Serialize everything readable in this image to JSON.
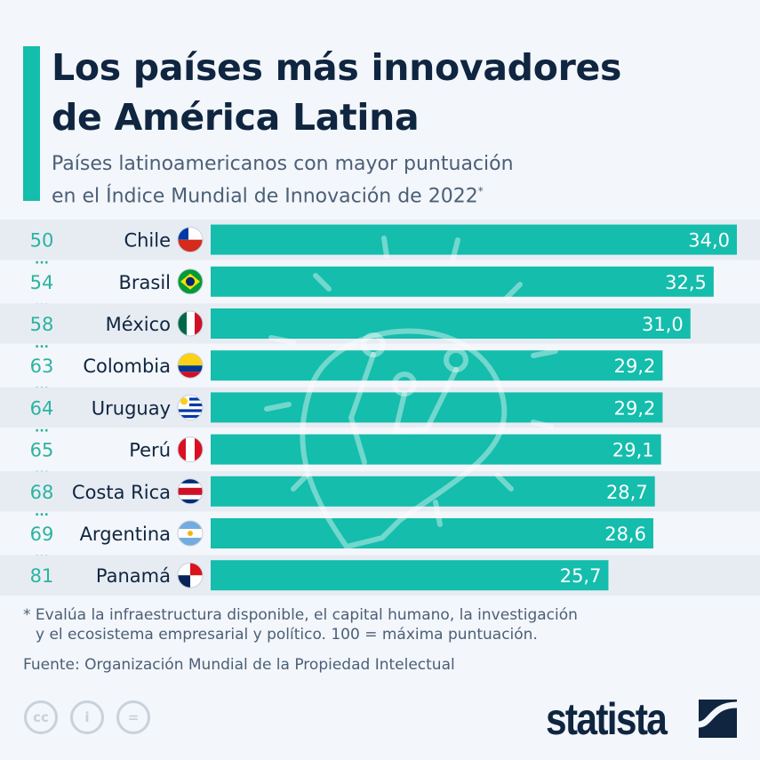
{
  "header": {
    "title_line1": "Los países más innovadores",
    "title_line2": "de América Latina",
    "subtitle_line1": "Países latinoamericanos con mayor puntuación",
    "subtitle_line2": "en el Índice Mundial de Innovación de 2022",
    "subtitle_mark": "*"
  },
  "chart_data": {
    "type": "bar",
    "orientation": "horizontal",
    "categories": [
      "Chile",
      "Brasil",
      "México",
      "Colombia",
      "Uruguay",
      "Perú",
      "Costa Rica",
      "Argentina",
      "Panamá"
    ],
    "ranks": [
      "50",
      "54",
      "58",
      "63",
      "64",
      "65",
      "68",
      "69",
      "81"
    ],
    "values": [
      34.0,
      32.5,
      31.0,
      29.2,
      29.2,
      29.1,
      28.7,
      28.6,
      25.7
    ],
    "value_labels": [
      "34,0",
      "32,5",
      "31,0",
      "29,2",
      "29,2",
      "29,1",
      "28,7",
      "28,6",
      "25,7"
    ],
    "xlim": [
      0,
      34
    ],
    "grid": false,
    "legend": "none",
    "colors": {
      "bar": "#14bdac",
      "rank": "#2bb3a0",
      "label": "#0f2540",
      "row_alt": "#e7ecf3"
    },
    "rank_separator": "..."
  },
  "footer": {
    "note_line1": "* Evalúa la infraestructura disponible, el capital humano, la investigación",
    "note_line2": "y el ecosistema empresarial y político. 100 = máxima puntuación.",
    "source": "Fuente: Organización Mundial de la Propiedad Intelectual",
    "brand": "statista",
    "license_icons": [
      "cc-icon",
      "by-icon",
      "nd-icon"
    ]
  }
}
